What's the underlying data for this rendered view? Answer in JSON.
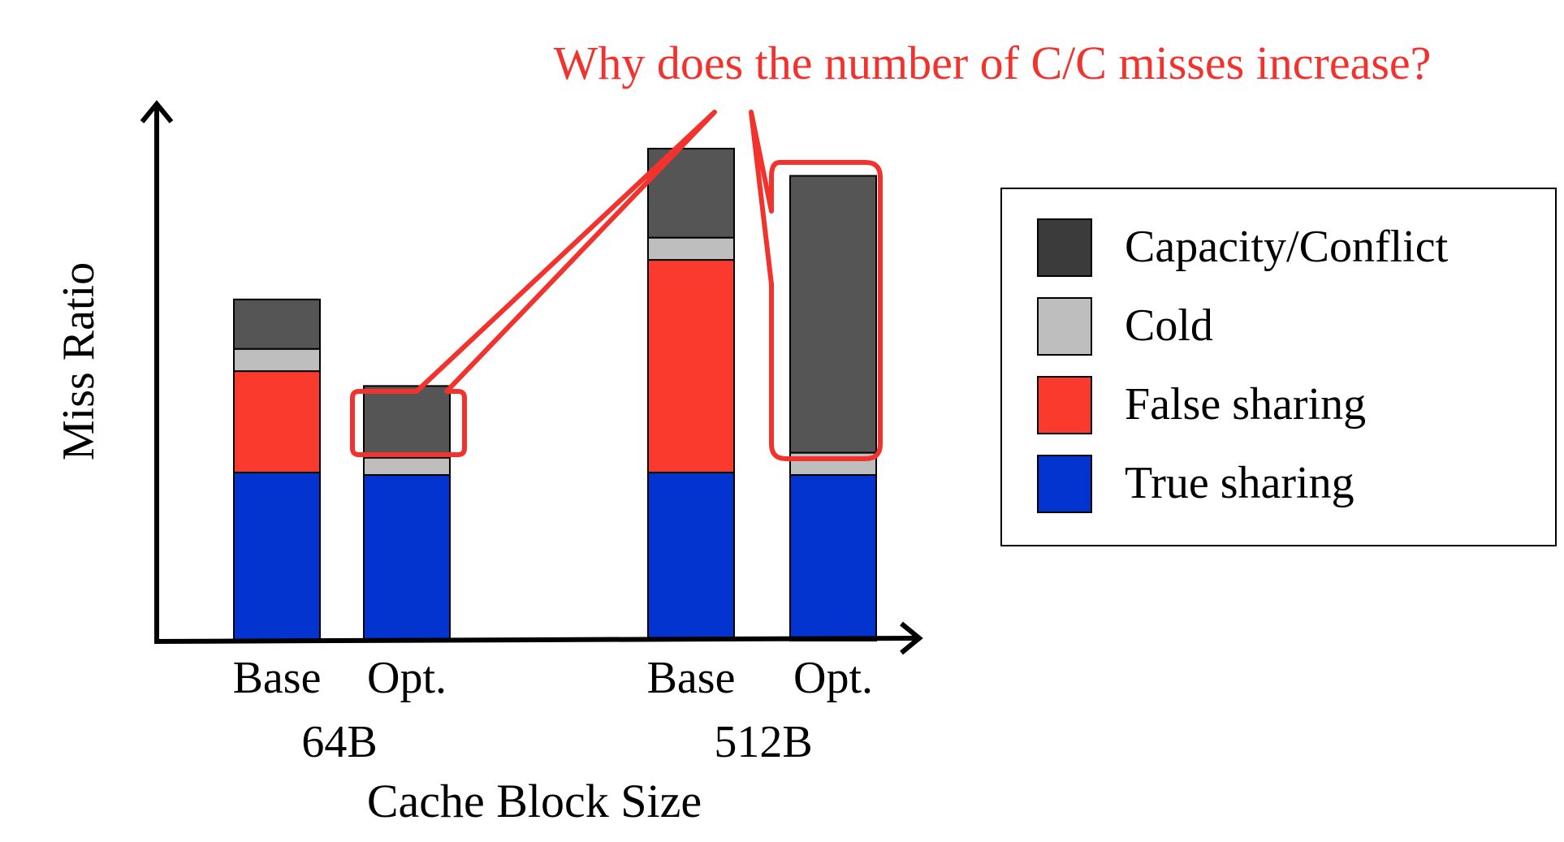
{
  "chart_data": {
    "type": "bar",
    "stacked": true,
    "title": "",
    "xlabel": "Cache Block Size",
    "ylabel": "Miss Ratio",
    "groups": [
      "64B",
      "512B"
    ],
    "categories": [
      "Base",
      "Opt.",
      "Base",
      "Opt."
    ],
    "category_group": [
      0,
      0,
      1,
      1
    ],
    "ylim": [
      0,
      10
    ],
    "y_ticks_shown": false,
    "grid": false,
    "legend_position": "right",
    "series": [
      {
        "name": "True sharing",
        "color": "#0434d0",
        "values": [
          3.4,
          3.35,
          3.4,
          3.35
        ]
      },
      {
        "name": "False sharing",
        "color": "#fb3a2e",
        "values": [
          2.05,
          0,
          4.3,
          0
        ]
      },
      {
        "name": "Cold",
        "color": "#bebebe",
        "values": [
          0.45,
          0.35,
          0.45,
          0.45
        ]
      },
      {
        "name": "Capacity/Conflict",
        "color": "#555555",
        "values": [
          1.0,
          1.45,
          1.8,
          5.6
        ]
      }
    ],
    "legend_order": [
      "Capacity/Conflict",
      "Cold",
      "False sharing",
      "True sharing"
    ],
    "legend_swatch_colors": {
      "Capacity/Conflict": "#3b3b3b",
      "Cold": "#bebebe",
      "False sharing": "#fb3a2e",
      "True sharing": "#0434d0"
    },
    "annotation": {
      "text": "Why does the number of C/C misses increase?",
      "color": "#f2322c",
      "highlights": [
        "Opt. 64B Capacity/Conflict",
        "Opt. 512B Capacity/Conflict"
      ]
    }
  }
}
